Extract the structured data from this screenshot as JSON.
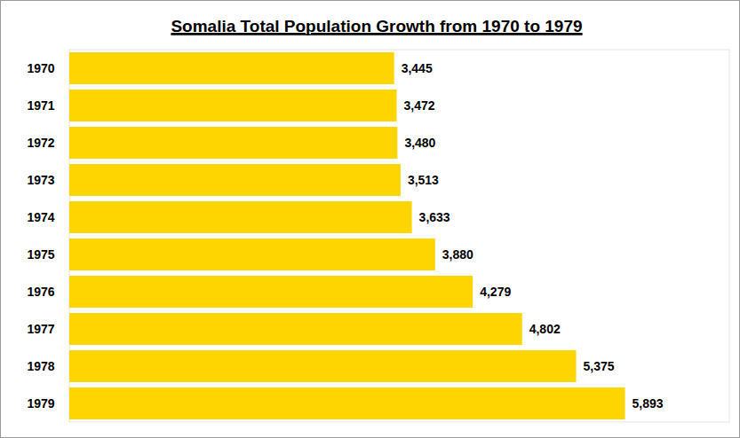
{
  "chart_data": {
    "type": "bar",
    "orientation": "horizontal",
    "title": "Somalia Total Population Growth from 1970 to 1979",
    "categories": [
      "1970",
      "1971",
      "1972",
      "1973",
      "1974",
      "1975",
      "1976",
      "1977",
      "1978",
      "1979"
    ],
    "values": [
      3445,
      3472,
      3480,
      3513,
      3633,
      3880,
      4279,
      4802,
      5375,
      5893
    ],
    "value_labels": [
      "3,445",
      "3,472",
      "3,480",
      "3,513",
      "3,633",
      "3,880",
      "4,279",
      "4,802",
      "5,375",
      "5,893"
    ],
    "color": "#ffd500",
    "xlim": [
      0,
      7000
    ],
    "data_labels": true,
    "tick_labels": "y",
    "grid": false
  }
}
